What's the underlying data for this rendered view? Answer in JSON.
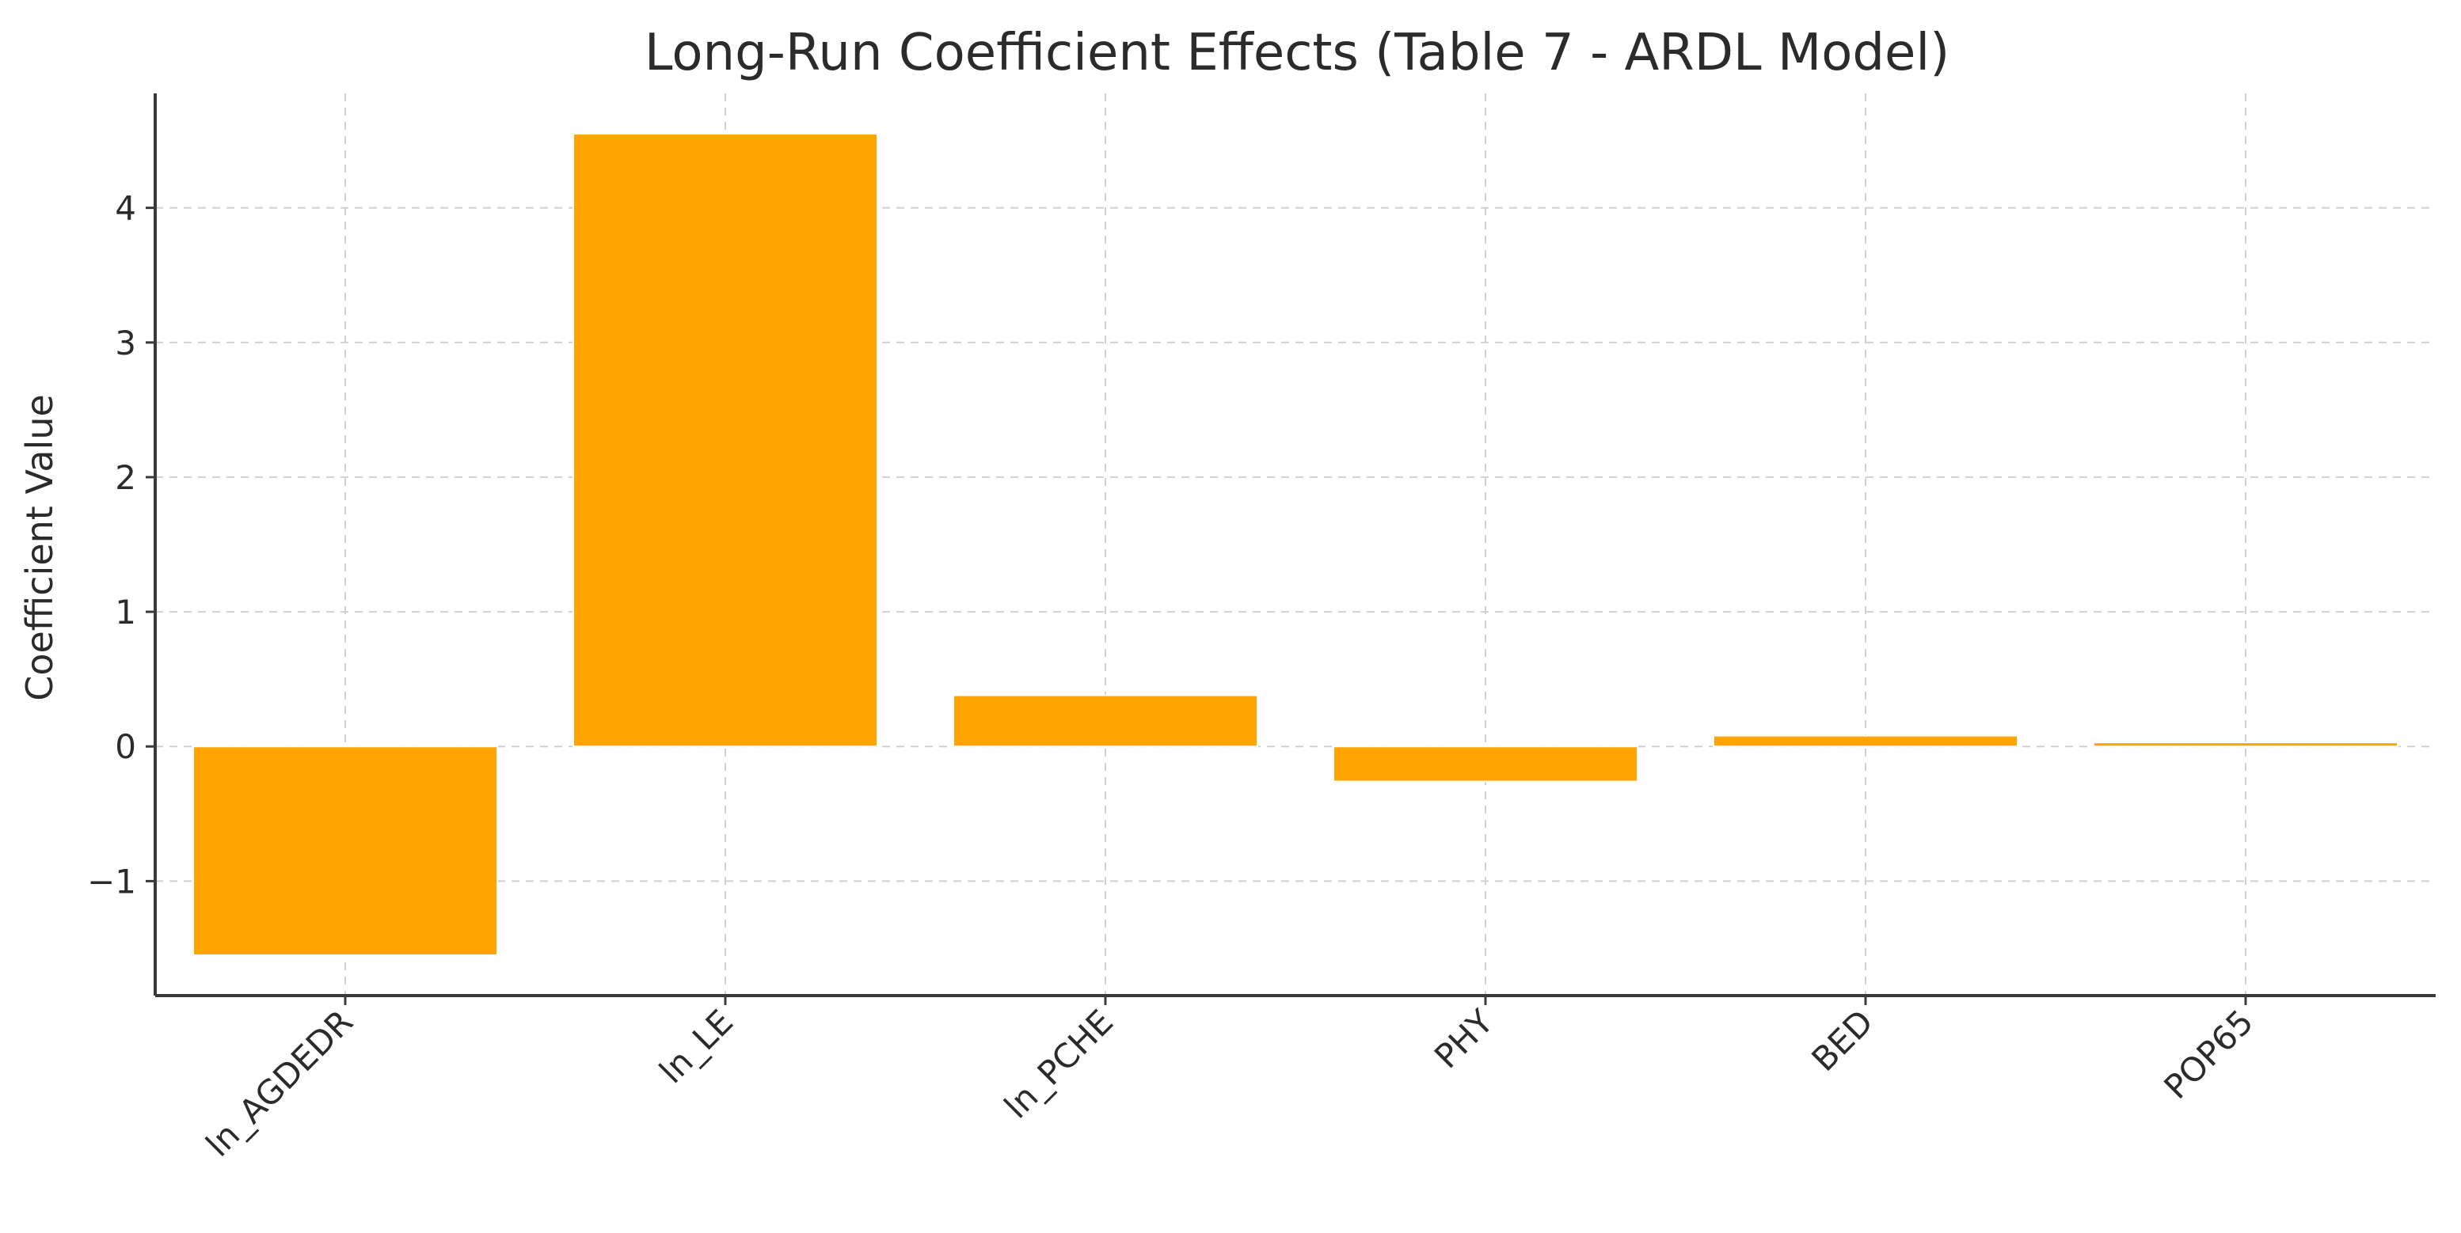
{
  "chart_data": {
    "type": "bar",
    "title": "Long-Run Coefficient Effects (Table 7 - ARDL Model)",
    "xlabel": "",
    "ylabel": "Coefficient Value",
    "categories": [
      "ln_AGDEDR",
      "ln_LE",
      "ln_PCHE",
      "PHY",
      "BED",
      "POP65"
    ],
    "values": [
      -1.55,
      4.55,
      0.38,
      -0.26,
      0.08,
      0.03
    ],
    "ylim": [
      -1.85,
      4.85
    ],
    "yticks": [
      -1,
      0,
      1,
      2,
      3,
      4
    ],
    "ytick_labels": [
      "−1",
      "0",
      "1",
      "2",
      "3",
      "4"
    ],
    "bar_color": "#ffa500",
    "grid": true,
    "legend": "none"
  }
}
